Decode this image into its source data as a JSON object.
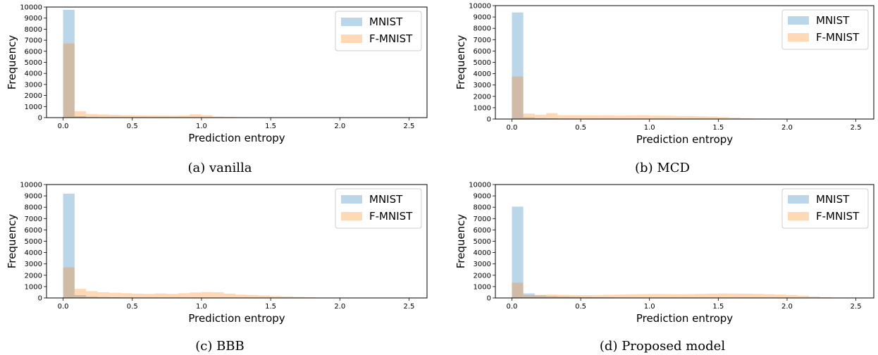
{
  "chart_data": [
    {
      "type": "bar",
      "caption": "(a) vanilla",
      "xlabel": "Prediction entropy",
      "ylabel": "Frequency",
      "xlim": [
        -0.12,
        2.63
      ],
      "ylim": [
        0,
        10000
      ],
      "xticks": [
        "0.0",
        "0.5",
        "1.0",
        "1.5",
        "2.0",
        "2.5"
      ],
      "yticks": [
        "0",
        "1000",
        "2000",
        "3000",
        "4000",
        "5000",
        "6000",
        "7000",
        "8000",
        "9000",
        "10000"
      ],
      "legend_position": "top-right",
      "bin_width": 0.083,
      "series": [
        {
          "name": "MNIST",
          "color": "#1f77b4",
          "opacity": 0.3,
          "values": [
            9750,
            120,
            50,
            30,
            20,
            10,
            5,
            5,
            3,
            2,
            2,
            1,
            0,
            0,
            0,
            0,
            0,
            0,
            0,
            0,
            0,
            0,
            0,
            0,
            0,
            0,
            0,
            0,
            0,
            0
          ]
        },
        {
          "name": "F-MNIST",
          "color": "#ff7f0e",
          "opacity": 0.3,
          "values": [
            6700,
            580,
            330,
            290,
            250,
            220,
            200,
            190,
            180,
            170,
            190,
            300,
            220,
            90,
            60,
            40,
            30,
            20,
            10,
            5,
            3,
            2,
            1,
            0,
            0,
            0,
            0,
            0,
            0,
            0
          ]
        }
      ]
    },
    {
      "type": "bar",
      "caption": "(b) MCD",
      "xlabel": "Prediction entropy",
      "ylabel": "Frequency",
      "xlim": [
        -0.12,
        2.63
      ],
      "ylim": [
        0,
        10000
      ],
      "xticks": [
        "0.0",
        "0.5",
        "1.0",
        "1.5",
        "2.0",
        "2.5"
      ],
      "yticks": [
        "0",
        "1000",
        "2000",
        "3000",
        "4000",
        "5000",
        "6000",
        "7000",
        "8000",
        "9000",
        "10000"
      ],
      "legend_position": "top-right",
      "bin_width": 0.083,
      "series": [
        {
          "name": "MNIST",
          "color": "#1f77b4",
          "opacity": 0.3,
          "values": [
            9400,
            150,
            80,
            60,
            40,
            30,
            20,
            15,
            10,
            8,
            6,
            5,
            4,
            3,
            2,
            2,
            1,
            0,
            0,
            0,
            0,
            0,
            0,
            0,
            0,
            0,
            0,
            0,
            0,
            0
          ]
        },
        {
          "name": "F-MNIST",
          "color": "#ff7f0e",
          "opacity": 0.3,
          "values": [
            3750,
            480,
            380,
            520,
            340,
            340,
            330,
            320,
            310,
            300,
            320,
            340,
            300,
            290,
            270,
            260,
            240,
            220,
            170,
            120,
            70,
            40,
            20,
            10,
            5,
            3,
            1,
            0,
            0,
            0
          ]
        }
      ]
    },
    {
      "type": "bar",
      "caption": "(c) BBB",
      "xlabel": "Prediction entropy",
      "ylabel": "Frequency",
      "xlim": [
        -0.12,
        2.63
      ],
      "ylim": [
        0,
        10000
      ],
      "xticks": [
        "0.0",
        "0.5",
        "1.0",
        "1.5",
        "2.0",
        "2.5"
      ],
      "yticks": [
        "0",
        "1000",
        "2000",
        "3000",
        "4000",
        "5000",
        "6000",
        "7000",
        "8000",
        "9000",
        "10000"
      ],
      "legend_position": "top-right",
      "bin_width": 0.083,
      "series": [
        {
          "name": "MNIST",
          "color": "#1f77b4",
          "opacity": 0.3,
          "values": [
            9200,
            250,
            120,
            80,
            60,
            40,
            30,
            20,
            15,
            10,
            8,
            5,
            3,
            2,
            1,
            0,
            0,
            0,
            0,
            0,
            0,
            0,
            0,
            0,
            0,
            0,
            0,
            0,
            0,
            0
          ]
        },
        {
          "name": "F-MNIST",
          "color": "#ff7f0e",
          "opacity": 0.3,
          "values": [
            2700,
            800,
            600,
            500,
            460,
            420,
            380,
            360,
            400,
            360,
            420,
            480,
            520,
            500,
            380,
            290,
            260,
            220,
            170,
            130,
            90,
            50,
            30,
            15,
            8,
            4,
            2,
            1,
            0,
            0
          ]
        }
      ]
    },
    {
      "type": "bar",
      "caption": "(d) Proposed model",
      "xlabel": "Prediction entropy",
      "ylabel": "Frequency",
      "xlim": [
        -0.12,
        2.63
      ],
      "ylim": [
        0,
        10000
      ],
      "xticks": [
        "0.0",
        "0.5",
        "1.0",
        "1.5",
        "2.0",
        "2.5"
      ],
      "yticks": [
        "0",
        "1000",
        "2000",
        "3000",
        "4000",
        "5000",
        "6000",
        "7000",
        "8000",
        "9000",
        "10000"
      ],
      "legend_position": "top-right",
      "bin_width": 0.083,
      "series": [
        {
          "name": "MNIST",
          "color": "#1f77b4",
          "opacity": 0.3,
          "values": [
            8050,
            400,
            230,
            160,
            120,
            100,
            80,
            60,
            50,
            40,
            30,
            20,
            15,
            10,
            8,
            6,
            4,
            3,
            2,
            1,
            0,
            0,
            0,
            0,
            0,
            0,
            0,
            0,
            0,
            0
          ]
        },
        {
          "name": "F-MNIST",
          "color": "#ff7f0e",
          "opacity": 0.3,
          "values": [
            1350,
            250,
            280,
            300,
            280,
            260,
            250,
            260,
            280,
            300,
            320,
            340,
            350,
            340,
            330,
            340,
            360,
            380,
            400,
            390,
            380,
            360,
            330,
            300,
            260,
            200,
            120,
            60,
            20,
            5
          ]
        }
      ]
    }
  ]
}
